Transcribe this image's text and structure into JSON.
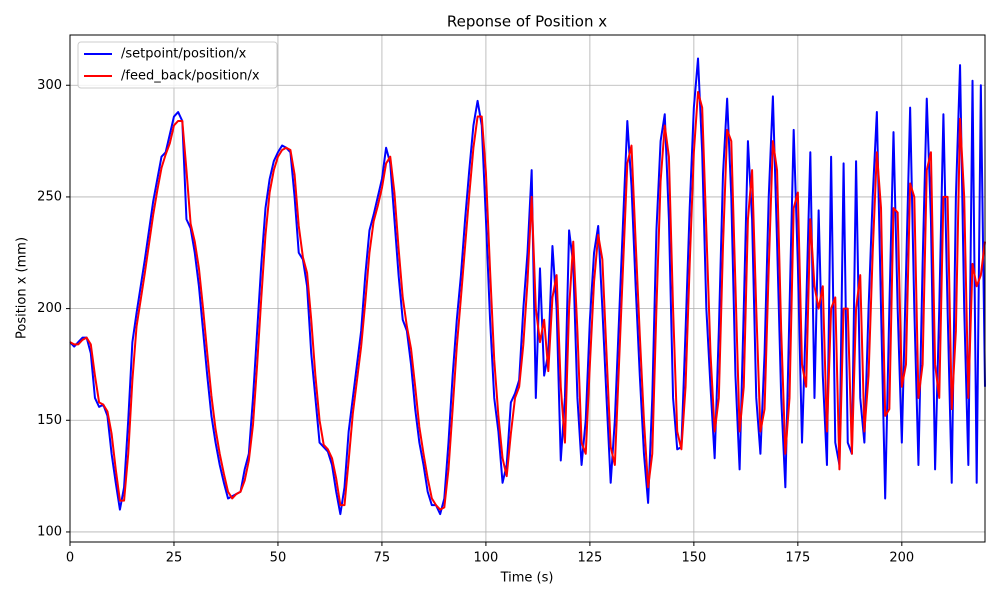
{
  "chart_data": {
    "type": "line",
    "title": "Reponse of Position x",
    "xlabel": "Time (s)",
    "ylabel": "Position x (mm)",
    "x": [
      0,
      1,
      2,
      3,
      4,
      5,
      6,
      7,
      8,
      9,
      10,
      11,
      12,
      13,
      14,
      15,
      16,
      17,
      18,
      19,
      20,
      21,
      22,
      23,
      24,
      25,
      26,
      27,
      28,
      29,
      30,
      31,
      32,
      33,
      34,
      35,
      36,
      37,
      38,
      39,
      40,
      41,
      42,
      43,
      44,
      45,
      46,
      47,
      48,
      49,
      50,
      51,
      52,
      53,
      54,
      55,
      56,
      57,
      58,
      59,
      60,
      61,
      62,
      63,
      64,
      65,
      66,
      67,
      68,
      69,
      70,
      71,
      72,
      73,
      74,
      75,
      76,
      77,
      78,
      79,
      80,
      81,
      82,
      83,
      84,
      85,
      86,
      87,
      88,
      89,
      90,
      91,
      92,
      93,
      94,
      95,
      96,
      97,
      98,
      99,
      100,
      101,
      102,
      103,
      104,
      105,
      106,
      107,
      108,
      109,
      110,
      111,
      112,
      113,
      114,
      115,
      116,
      117,
      118,
      119,
      120,
      121,
      122,
      123,
      124,
      125,
      126,
      127,
      128,
      129,
      130,
      131,
      132,
      133,
      134,
      135,
      136,
      137,
      138,
      139,
      140,
      141,
      142,
      143,
      144,
      145,
      146,
      147,
      148,
      149,
      150,
      151,
      152,
      153,
      154,
      155,
      156,
      157,
      158,
      159,
      160,
      161,
      162,
      163,
      164,
      165,
      166,
      167,
      168,
      169,
      170,
      171,
      172,
      173,
      174,
      175,
      176,
      177,
      178,
      179,
      180,
      181,
      182,
      183,
      184,
      185,
      186,
      187,
      188,
      189,
      190,
      191,
      192,
      193,
      194,
      195,
      196,
      197,
      198,
      199,
      200,
      201,
      202,
      203,
      204,
      205,
      206,
      207,
      208,
      209,
      210,
      211,
      212,
      213,
      214,
      215,
      216,
      217,
      218,
      219,
      220
    ],
    "series": [
      {
        "name": "/setpoint/position/x",
        "color": "#0000ff",
        "values": [
          185,
          183,
          185,
          187,
          187,
          180,
          160,
          156,
          157,
          152,
          135,
          122,
          110,
          120,
          150,
          185,
          198,
          210,
          222,
          235,
          248,
          258,
          268,
          270,
          278,
          286,
          288,
          284,
          240,
          236,
          225,
          210,
          190,
          170,
          152,
          140,
          130,
          122,
          115,
          116,
          117,
          118,
          128,
          135,
          160,
          190,
          220,
          245,
          258,
          266,
          270,
          273,
          272,
          270,
          250,
          225,
          222,
          210,
          180,
          160,
          140,
          138,
          136,
          130,
          118,
          108,
          120,
          145,
          160,
          175,
          190,
          215,
          235,
          242,
          250,
          258,
          272,
          265,
          240,
          215,
          195,
          190,
          175,
          155,
          140,
          130,
          118,
          112,
          112,
          108,
          115,
          140,
          170,
          195,
          215,
          240,
          262,
          282,
          293,
          282,
          240,
          195,
          160,
          145,
          122,
          130,
          158,
          162,
          168,
          200,
          225,
          262,
          160,
          218,
          170,
          180,
          228,
          200,
          132,
          160,
          235,
          220,
          160,
          130,
          150,
          195,
          225,
          237,
          200,
          160,
          122,
          150,
          195,
          240,
          284,
          255,
          210,
          170,
          135,
          113,
          160,
          235,
          275,
          287,
          240,
          160,
          137,
          138,
          190,
          245,
          290,
          312,
          270,
          200,
          165,
          133,
          190,
          260,
          294,
          250,
          170,
          128,
          200,
          275,
          240,
          160,
          135,
          180,
          250,
          295,
          230,
          160,
          120,
          200,
          280,
          220,
          140,
          200,
          270,
          160,
          244,
          170,
          130,
          268,
          140,
          130,
          265,
          140,
          135,
          266,
          160,
          140,
          200,
          250,
          288,
          200,
          115,
          200,
          279,
          200,
          140,
          215,
          290,
          200,
          130,
          220,
          294,
          240,
          128,
          200,
          287,
          200,
          122,
          250,
          309,
          200,
          130,
          302,
          122,
          300,
          165
        ]
      },
      {
        "name": "/feed_back/position/x",
        "color": "#ff0000",
        "values": [
          185,
          184,
          184,
          186,
          187,
          184,
          170,
          158,
          157,
          154,
          144,
          128,
          114,
          114,
          135,
          168,
          192,
          204,
          216,
          229,
          242,
          253,
          263,
          269,
          274,
          282,
          284,
          284,
          262,
          238,
          230,
          218,
          200,
          180,
          161,
          146,
          135,
          126,
          118,
          115,
          117,
          118,
          123,
          132,
          148,
          175,
          205,
          233,
          252,
          262,
          268,
          271,
          272,
          271,
          260,
          237,
          223,
          216,
          195,
          170,
          150,
          139,
          137,
          133,
          124,
          112,
          112,
          132,
          153,
          168,
          183,
          203,
          225,
          239,
          246,
          254,
          265,
          268,
          252,
          227,
          205,
          192,
          182,
          165,
          147,
          135,
          124,
          115,
          112,
          110,
          111,
          128,
          155,
          183,
          205,
          228,
          251,
          272,
          286,
          286,
          261,
          217,
          177,
          152,
          133,
          125,
          144,
          160,
          165,
          184,
          212,
          250,
          200,
          185,
          195,
          172,
          205,
          215,
          165,
          140,
          200,
          230,
          190,
          140,
          135,
          175,
          212,
          233,
          222,
          180,
          138,
          130,
          175,
          220,
          265,
          273,
          230,
          188,
          150,
          120,
          135,
          200,
          257,
          282,
          268,
          200,
          145,
          137,
          165,
          220,
          270,
          297,
          290,
          235,
          180,
          145,
          160,
          228,
          280,
          275,
          210,
          145,
          165,
          240,
          262,
          200,
          145,
          155,
          218,
          275,
          262,
          190,
          135,
          160,
          245,
          252,
          175,
          165,
          240,
          210,
          200,
          210,
          145,
          200,
          205,
          128,
          200,
          200,
          135,
          200,
          215,
          145,
          170,
          225,
          270,
          245,
          152,
          155,
          245,
          243,
          165,
          175,
          256,
          250,
          160,
          175,
          262,
          270,
          175,
          160,
          250,
          250,
          155,
          190,
          285,
          250,
          160,
          220,
          210,
          215,
          230
        ]
      }
    ],
    "xlim": [
      0,
      220
    ],
    "ylim": [
      95.5,
      322.5
    ],
    "xticks": [
      0,
      25,
      50,
      75,
      100,
      125,
      150,
      175,
      200
    ],
    "yticks": [
      100,
      150,
      200,
      250,
      300
    ],
    "grid": true,
    "legend": "upper left"
  }
}
